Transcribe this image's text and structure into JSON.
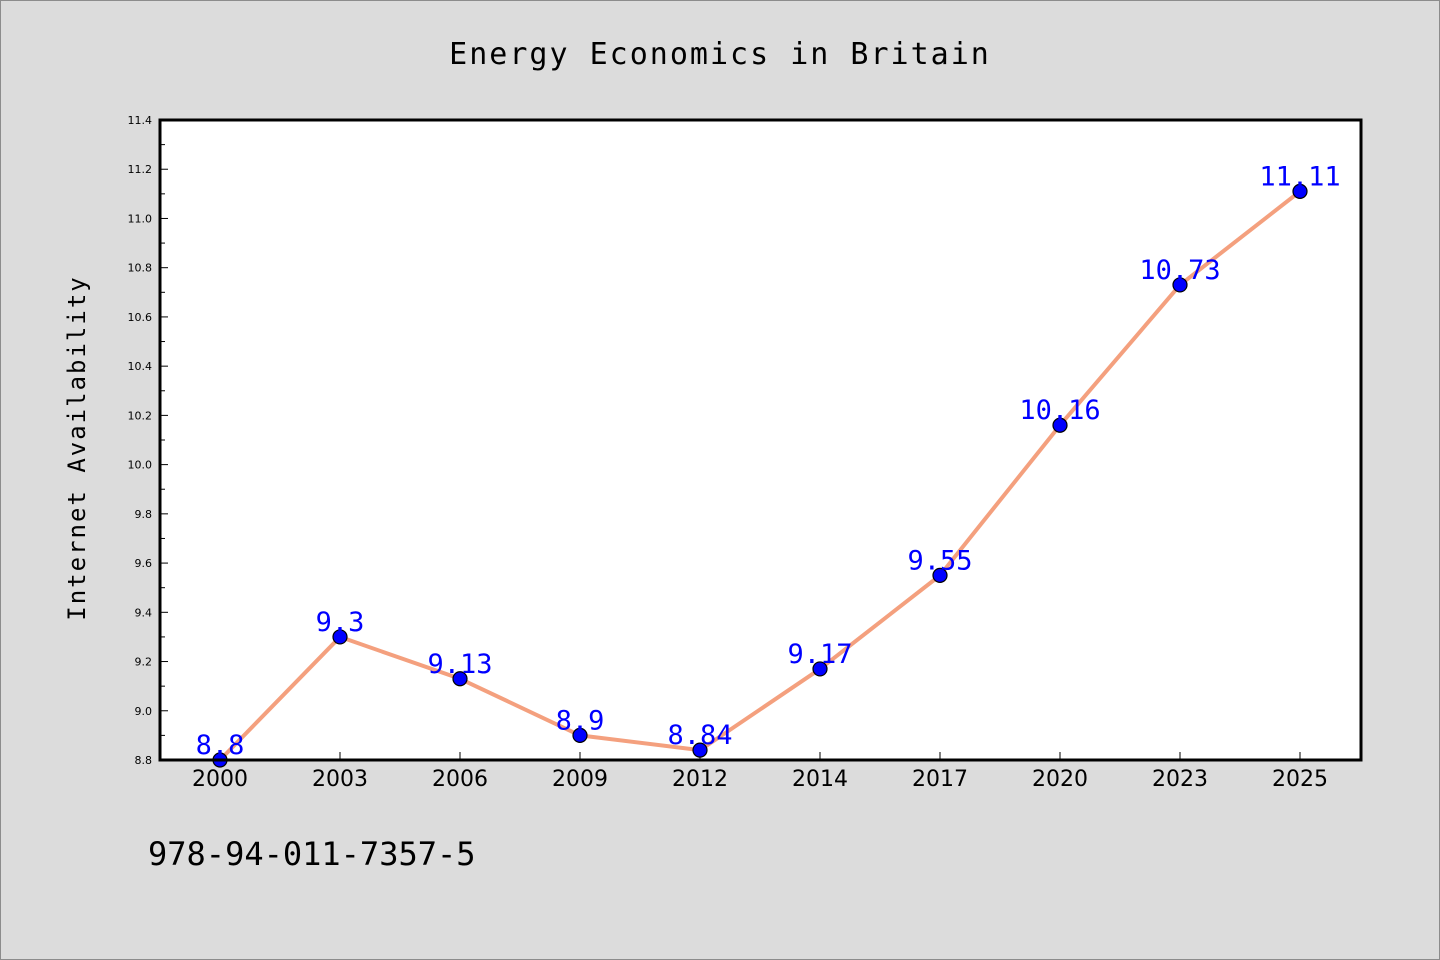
{
  "chart_data": {
    "type": "line",
    "title": "Energy Economics in Britain",
    "xlabel": "",
    "ylabel": "Internet Availability",
    "categories": [
      "2000",
      "2003",
      "2006",
      "2009",
      "2012",
      "2014",
      "2017",
      "2020",
      "2023",
      "2025"
    ],
    "values": [
      8.8,
      9.3,
      9.13,
      8.9,
      8.84,
      9.17,
      9.55,
      10.16,
      10.73,
      11.11
    ],
    "data_labels": [
      "8.8",
      "9.3",
      "9.13",
      "8.9",
      "8.84",
      "9.17",
      "9.55",
      "10.16",
      "10.73",
      "11.11"
    ],
    "ylim": [
      8.8,
      11.4
    ],
    "yticks": [
      "8.8",
      "9.0",
      "9.2",
      "9.4",
      "9.6",
      "9.8",
      "10.0",
      "10.2",
      "10.4",
      "10.6",
      "10.8",
      "11.0",
      "11.2",
      "11.4"
    ],
    "grid": false,
    "legend": "none",
    "colors": {
      "line": "#f4a07e",
      "marker": "#0000ff",
      "marker_edge": "#000000",
      "data_label": "#0000ff",
      "plot_bg": "#ffffff",
      "figure_bg": "#dcdcdc"
    }
  },
  "footer": {
    "isbn": "978-94-011-7357-5"
  }
}
